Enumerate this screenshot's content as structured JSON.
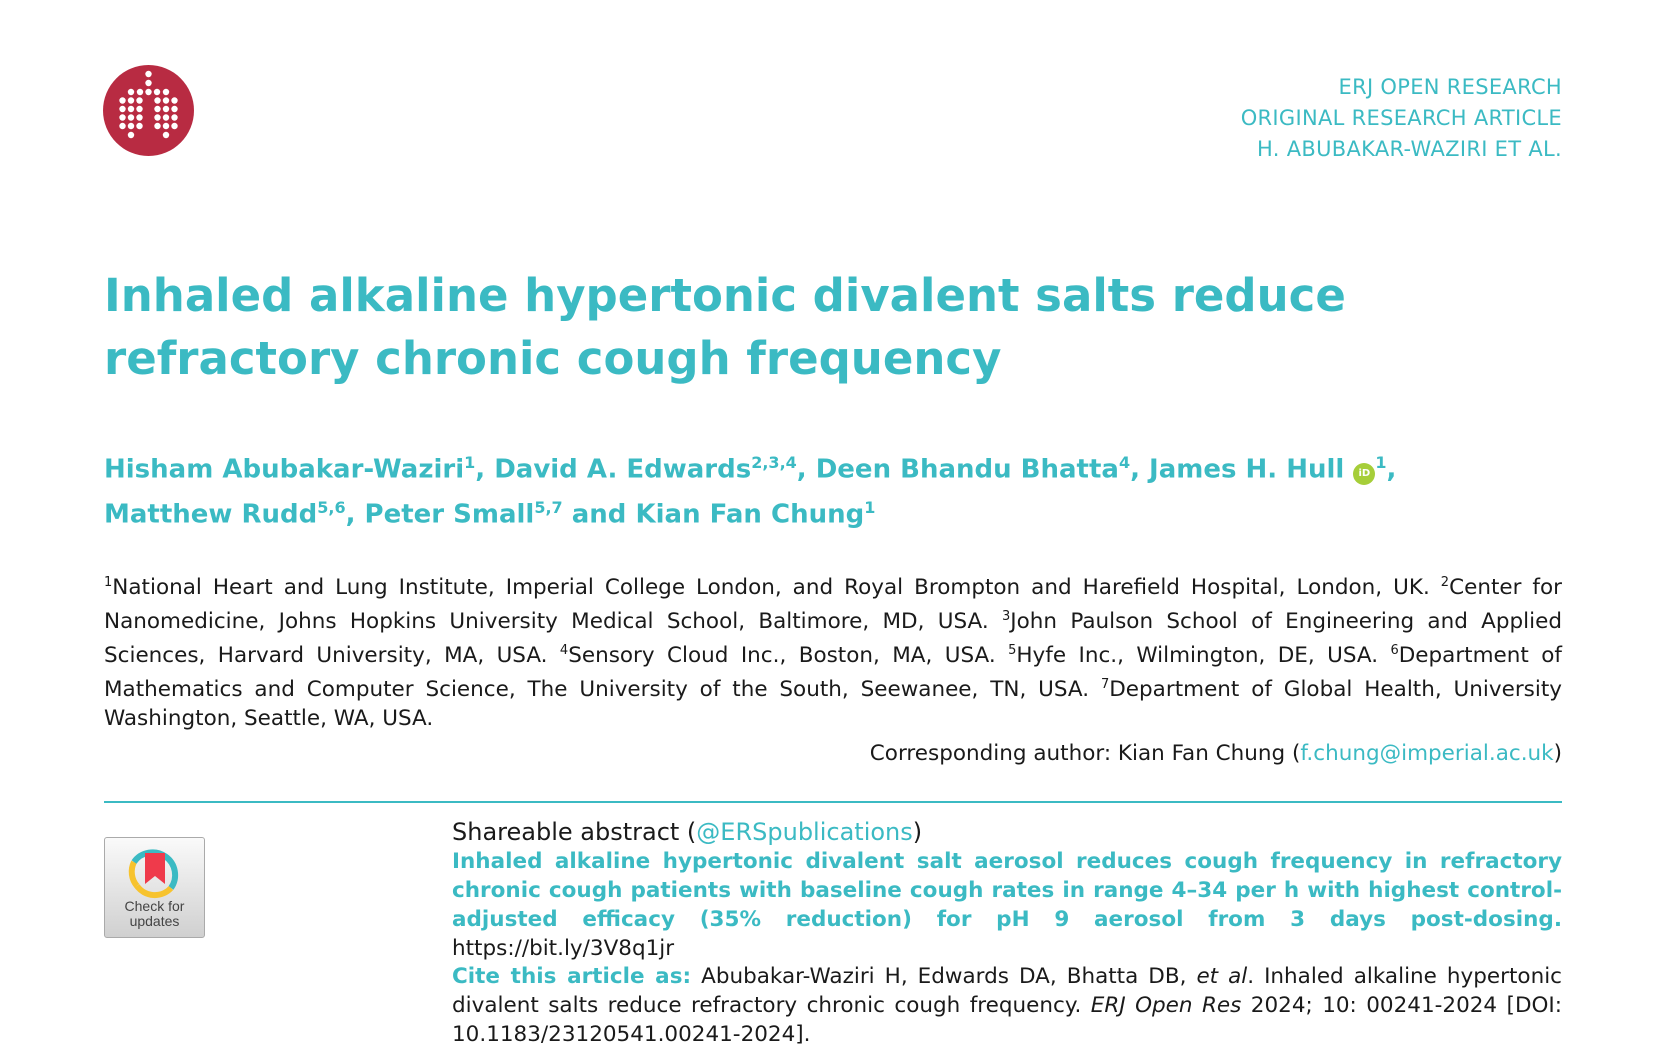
{
  "logo": {
    "name": "ERS lung logo",
    "color": "#b82b42"
  },
  "header": {
    "journal": "ERJ OPEN RESEARCH",
    "type": "ORIGINAL RESEARCH ARTICLE",
    "authors_short": "H. ABUBAKAR-WAZIRI ET AL."
  },
  "title": "Inhaled alkaline hypertonic divalent salts reduce refractory chronic cough frequency",
  "authors": [
    {
      "name": "Hisham Abubakar-Waziri",
      "aff": "1"
    },
    {
      "name": "David A. Edwards",
      "aff": "2,3,4"
    },
    {
      "name": "Deen Bhandu Bhatta",
      "aff": "4"
    },
    {
      "name": "James H. Hull",
      "aff": "1",
      "orcid": "iD"
    },
    {
      "name": "Matthew Rudd",
      "aff": "5,6"
    },
    {
      "name": "Peter Small",
      "aff": "5,7"
    },
    {
      "name": "Kian Fan Chung",
      "aff": "1"
    }
  ],
  "author_and": "and",
  "affiliations": [
    {
      "n": "1",
      "text": "National Heart and Lung Institute, Imperial College London, and Royal Brompton and Harefield Hospital, London, UK."
    },
    {
      "n": "2",
      "text": "Center for Nanomedicine, Johns Hopkins University Medical School, Baltimore, MD, USA."
    },
    {
      "n": "3",
      "text": "John Paulson School of Engineering and Applied Sciences, Harvard University, MA, USA."
    },
    {
      "n": "4",
      "text": "Sensory Cloud Inc., Boston, MA, USA."
    },
    {
      "n": "5",
      "text": "Hyfe Inc., Wilmington, DE, USA."
    },
    {
      "n": "6",
      "text": "Department of Mathematics and Computer Science, The University of the South, Seewanee, TN, USA."
    },
    {
      "n": "7",
      "text": "Department of Global Health, University Washington, Seattle, WA, USA."
    }
  ],
  "corresponding": {
    "label": "Corresponding author: Kian Fan Chung (",
    "email": "f.chung@imperial.ac.uk",
    "close": ")"
  },
  "check_updates": {
    "line1": "Check for",
    "line2": "updates"
  },
  "shareable": {
    "label": "Shareable abstract (",
    "handle": "@ERSpublications",
    "close": ")",
    "text": "Inhaled alkaline hypertonic divalent salt aerosol reduces cough frequency in refractory chronic cough patients with baseline cough rates in range 4–34 per h with highest control-adjusted efficacy (35% reduction) for pH 9 aerosol from 3 days post-dosing.",
    "link": "https://bit.ly/3V8q1jr"
  },
  "cite": {
    "label": "Cite this article as:",
    "authors": "Abubakar-Waziri H, Edwards DA, Bhatta DB,",
    "etal": "et al",
    "rest": ". Inhaled alkaline hypertonic divalent salts reduce refractory chronic cough frequency.",
    "journal": "ERJ Open Res",
    "details": "2024; 10: 00241-2024 [DOI: 10.1183/23120541.00241-2024]."
  },
  "colors": {
    "accent": "#3bbac3",
    "logo": "#b82b42"
  }
}
